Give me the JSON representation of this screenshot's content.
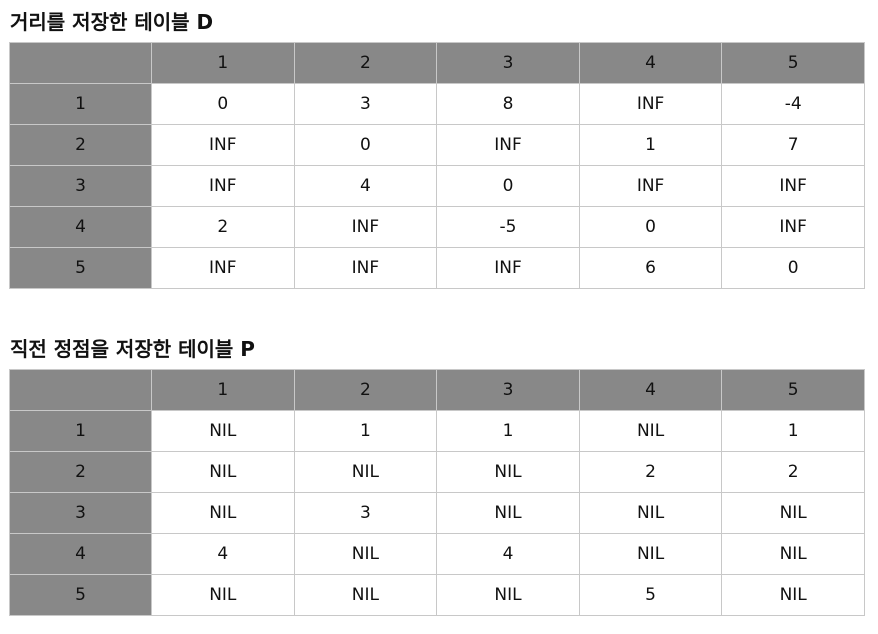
{
  "distance_table": {
    "title": "거리를 저장한 테이블 D",
    "columns": [
      "",
      "1",
      "2",
      "3",
      "4",
      "5"
    ],
    "rows": [
      {
        "label": "1",
        "cells": [
          "0",
          "3",
          "8",
          "INF",
          "-4"
        ]
      },
      {
        "label": "2",
        "cells": [
          "INF",
          "0",
          "INF",
          "1",
          "7"
        ]
      },
      {
        "label": "3",
        "cells": [
          "INF",
          "4",
          "0",
          "INF",
          "INF"
        ]
      },
      {
        "label": "4",
        "cells": [
          "2",
          "INF",
          "-5",
          "0",
          "INF"
        ]
      },
      {
        "label": "5",
        "cells": [
          "INF",
          "INF",
          "INF",
          "6",
          "0"
        ]
      }
    ]
  },
  "predecessor_table": {
    "title": "직전 정점을 저장한 테이블 P",
    "columns": [
      "",
      "1",
      "2",
      "3",
      "4",
      "5"
    ],
    "rows": [
      {
        "label": "1",
        "cells": [
          "NIL",
          "1",
          "1",
          "NIL",
          "1"
        ]
      },
      {
        "label": "2",
        "cells": [
          "NIL",
          "NIL",
          "NIL",
          "2",
          "2"
        ]
      },
      {
        "label": "3",
        "cells": [
          "NIL",
          "3",
          "NIL",
          "NIL",
          "NIL"
        ]
      },
      {
        "label": "4",
        "cells": [
          "4",
          "NIL",
          "4",
          "NIL",
          "NIL"
        ]
      },
      {
        "label": "5",
        "cells": [
          "NIL",
          "NIL",
          "NIL",
          "5",
          "NIL"
        ]
      }
    ]
  },
  "colors": {
    "header_bg": "#888888",
    "cell_bg": "#ffffff",
    "border": "#c8c8c8"
  }
}
